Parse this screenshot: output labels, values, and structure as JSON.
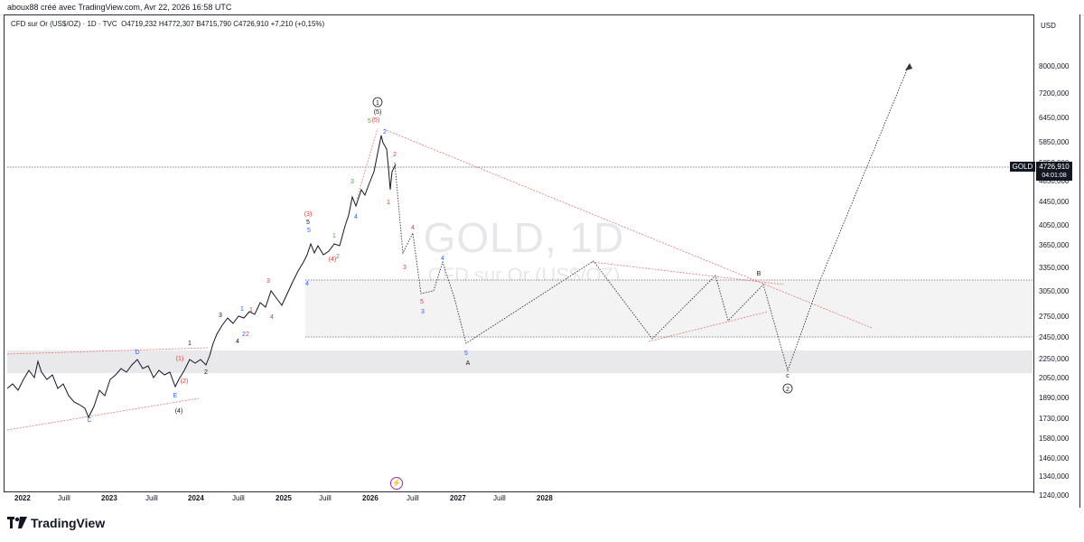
{
  "header": {
    "attribution": "aboux88 créé avec TradingView.com, Avr 22, 2026 16:58 UTC"
  },
  "legend": {
    "symbol_line": "CFD sur Or (US$/OZ) · 1D · TVC",
    "ohlc": "O4719,232  H4772,307  B4715,790  C4726,910  +7,210 (+0,15%)"
  },
  "watermark": {
    "title": "GOLD, 1D",
    "subtitle": "CFD sur Or (US$/OZ)"
  },
  "price_axis": {
    "currency": "USD",
    "labels": [
      "8000,000",
      "7200,000",
      "6450,000",
      "5850,000",
      "5250,000",
      "4850,000",
      "4450,000",
      "4050,000",
      "3650,000",
      "3350,000",
      "3050,000",
      "2750,000",
      "2450,000",
      "2250,000",
      "2050,000",
      "1890,000",
      "1730,000",
      "1580,000",
      "1460,000",
      "1340,000",
      "1240,000"
    ],
    "current_symbol": "GOLD",
    "current_price": "4726,910",
    "countdown": "04:01:08"
  },
  "time_axis": {
    "labels": [
      "2022",
      "Juill",
      "2023",
      "Juill",
      "2024",
      "Juill",
      "2025",
      "Juill",
      "2026",
      "Juill",
      "2027",
      "Juill",
      "2028"
    ]
  },
  "wave_labels": {
    "major1": "1",
    "major1_sub": "(5)",
    "major2": "2",
    "A": "A",
    "B": "B",
    "C": "C",
    "D": "D",
    "E": "E",
    "c_small": "c",
    "p4": "(4)",
    "p1": "(1)",
    "p2": "(2)",
    "p3": "(3)",
    "p5": "(5)"
  },
  "brand": {
    "name": "TradingView"
  },
  "events_icon": "lightning-icon",
  "colors": {
    "wave_red": "#e53935",
    "wave_blue": "#2962ff",
    "wave_green": "#43a047",
    "zone": "#e8e8ea"
  }
}
